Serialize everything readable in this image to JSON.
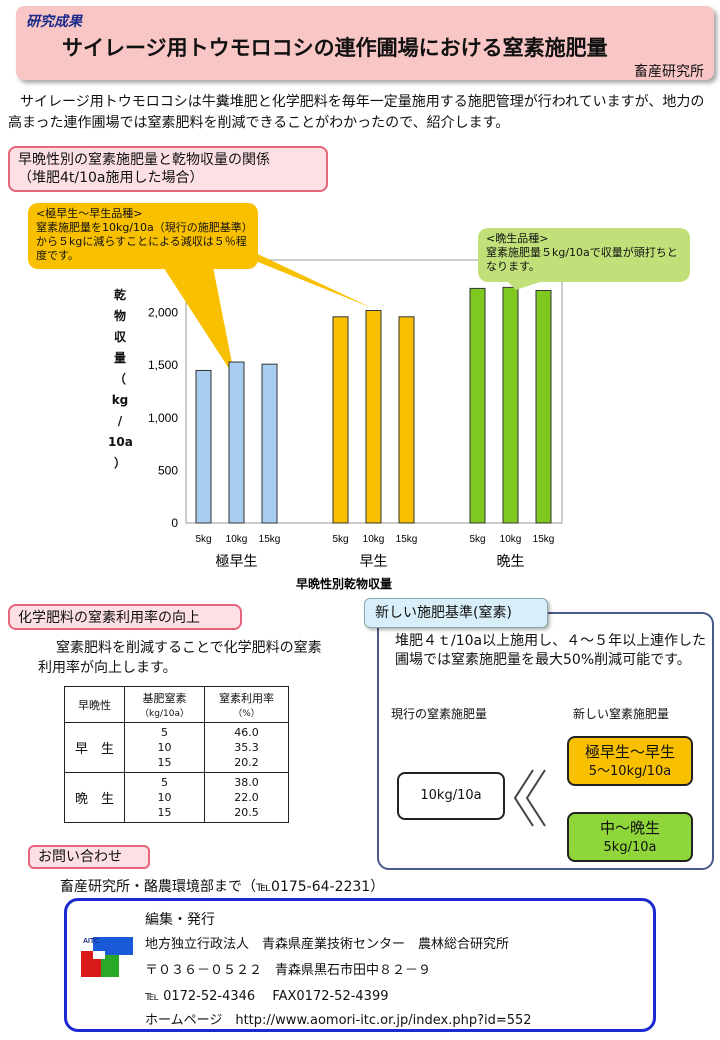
{
  "header": {
    "tag": "研究成果",
    "title": "サイレージ用トウモロコシの連作圃場における窒素施肥量",
    "org": "畜産研究所"
  },
  "intro": "サイレージ用トウモロコシは牛糞堆肥と化学肥料を毎年一定量施用する施肥管理が行われていますが、地力の高まった連作圃場では窒素肥料を削減できることがわかったので、紹介します。",
  "section1": {
    "line1": "早晩性別の窒素施肥量と乾物収量の関係",
    "line2": "（堆肥4t/10a施用した場合）"
  },
  "callout_orange": {
    "title": "<極早生～早生品種>",
    "body": "窒素施肥量を10kg/10a（現行の施肥基準）から５kgに減らすことによる減収は５％程度です。"
  },
  "callout_green": {
    "title": "<晩生品種>",
    "body": "窒素施肥量５kg/10aで収量が頭打ちとなります。"
  },
  "chart_data": {
    "type": "bar",
    "title": "",
    "xlabel": "早晩性別乾物収量",
    "ylabel": "乾物収量（kg/10a）",
    "ylim": [
      0,
      2500
    ],
    "yticks": [
      "0",
      "500",
      "1,000",
      "1,500",
      "2,000"
    ],
    "groups": [
      "極早生",
      "早生",
      "晩生"
    ],
    "subcategories": [
      "5kg",
      "10kg",
      "15kg"
    ],
    "series": [
      {
        "group": "極早生",
        "color": "#a8cdf0",
        "values": [
          1450,
          1530,
          1510
        ]
      },
      {
        "group": "早生",
        "color": "#f9c000",
        "values": [
          1960,
          2020,
          1960
        ]
      },
      {
        "group": "晩生",
        "color": "#7ec820",
        "values": [
          2230,
          2240,
          2210
        ]
      }
    ],
    "grid": false
  },
  "section2": {
    "title": "化学肥料の窒素利用率の向上",
    "text1": "窒素肥料を削減することで化学肥料の窒素",
    "text2": "利用率が向上します。"
  },
  "table": {
    "h1": "早晩性",
    "h2a": "基肥窒素",
    "h2b": "（kg/10a）",
    "h3a": "窒素利用率",
    "h3b": "（%）",
    "rows": [
      {
        "label": "早　生",
        "n": "5\n10\n15",
        "rate": "46.0\n35.3\n20.2"
      },
      {
        "label": "晩　生",
        "n": "5\n10\n15",
        "rate": "38.0\n22.0\n20.5"
      }
    ]
  },
  "section3": {
    "title": "新しい施肥基準(窒素)",
    "text": "堆肥４ｔ/10a以上施用し、４～５年以上連作した圃場では窒素施肥量を最大50%削減可能です。",
    "current_label": "現行の窒素施肥量",
    "new_label": "新しい窒素施肥量",
    "current_value": "10kg/10a",
    "box1_title": "極早生～早生",
    "box1_value": "5～10kg/10a",
    "box2_title": "中～晩生",
    "box2_value": "5kg/10a",
    "box1_color": "#f9c000",
    "box2_color": "#8ed63a"
  },
  "contact": {
    "title": "お問い合わせ",
    "text": "畜産研究所・酪農環境部まで（℡0175-64-2231）"
  },
  "footer": {
    "l1": "編集・発行",
    "l2": "地方独立行政法人　青森県産業技術センター　農林総合研究所",
    "l3": "〒０３６－０５２２　青森県黒石市田中８２－９",
    "l4": "℡ 0172-52-4346　 FAX0172-52-4399",
    "l5": "ホームページ　http://www.aomori-itc.or.jp/index.php?id=552",
    "logo_text": "AITC"
  }
}
